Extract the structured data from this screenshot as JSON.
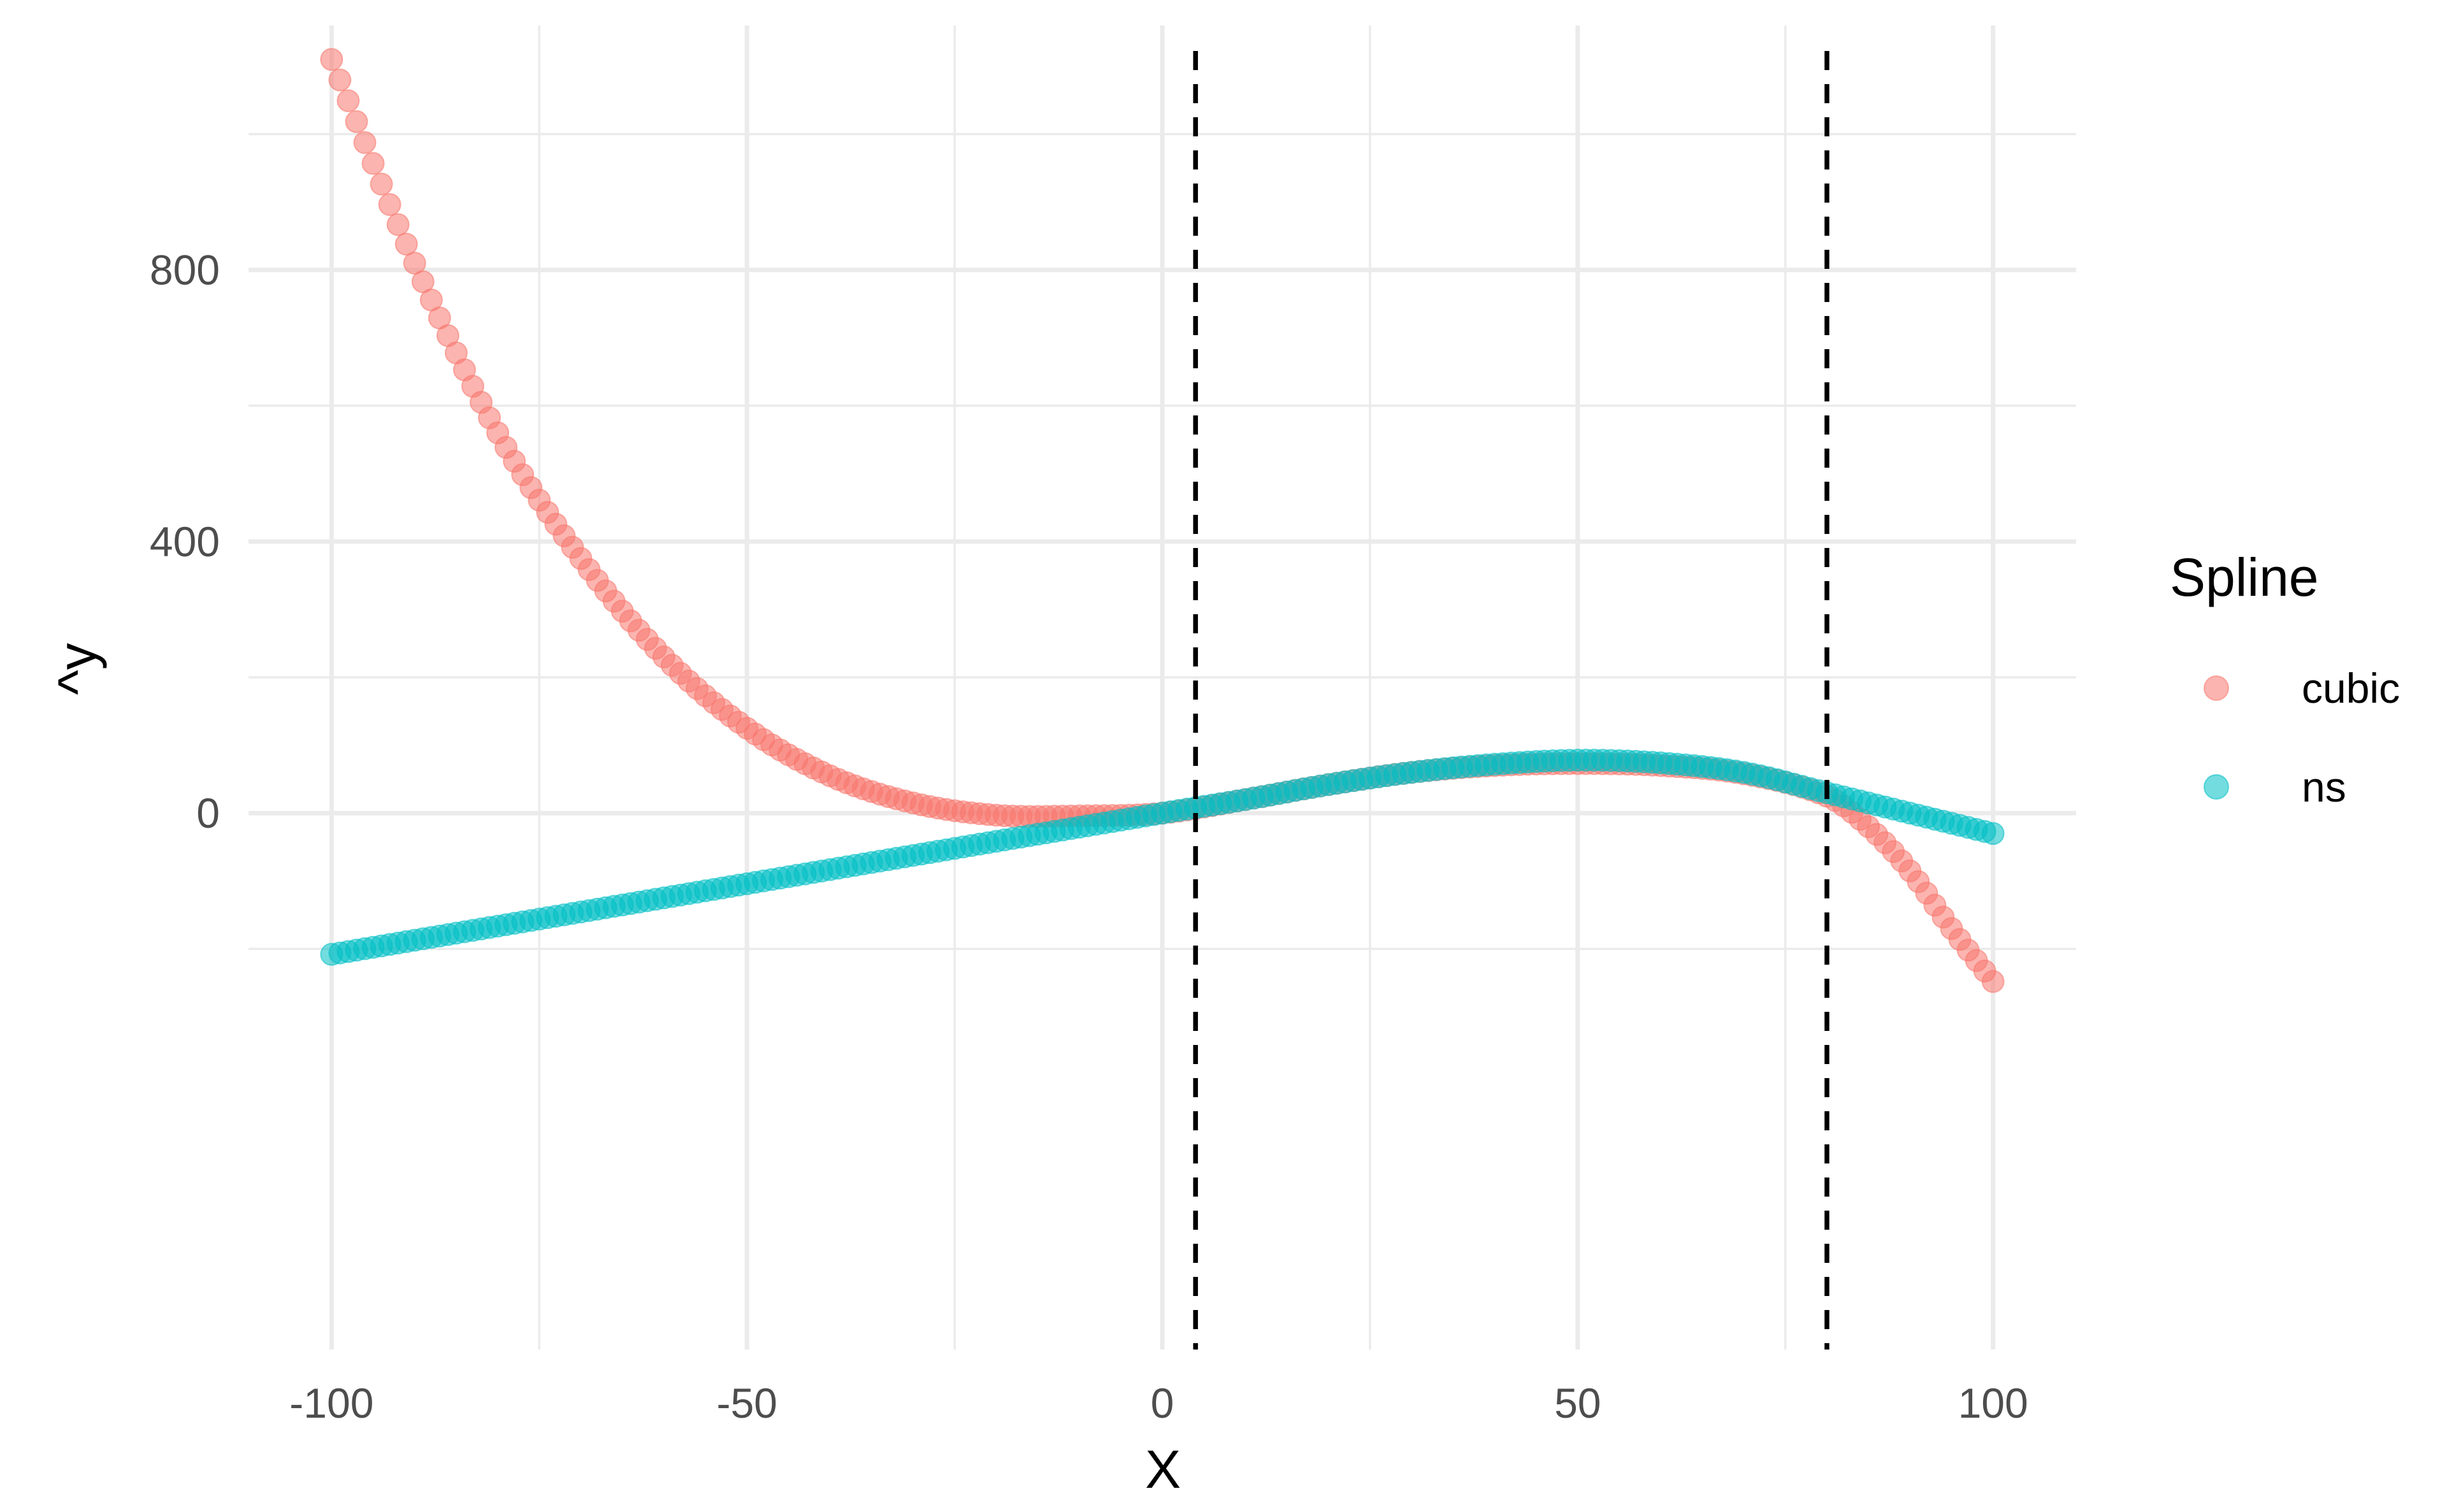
{
  "chart_data": {
    "type": "scatter",
    "xlabel": "X",
    "ylabel": "^y",
    "xlim": [
      -110,
      110
    ],
    "ylim": [
      -790,
      1160
    ],
    "x_ticks": [
      -100,
      -50,
      0,
      50,
      100
    ],
    "x_tick_labels": [
      "-100",
      "-50",
      "0",
      "50",
      "100"
    ],
    "y_ticks": [
      0,
      400,
      800
    ],
    "y_tick_labels": [
      "0",
      "400",
      "800"
    ],
    "x_minor_ticks": [
      -75,
      -25,
      25,
      75
    ],
    "y_minor_ticks": [
      -200,
      200,
      600,
      1000
    ],
    "grid": true,
    "knots": [
      4,
      80
    ],
    "legend": {
      "title": "Spline",
      "position": "right",
      "entries": [
        {
          "label": "cubic",
          "color": "#F8766D"
        },
        {
          "label": "ns",
          "color": "#00BFC4"
        }
      ]
    },
    "series": [
      {
        "name": "cubic",
        "color": "#F8766D",
        "x_range": [
          -100,
          100
        ],
        "x_step": 1,
        "anchor_points": [
          {
            "x": -100,
            "y": 1110
          },
          {
            "x": -90,
            "y": 810
          },
          {
            "x": -80,
            "y": 560
          },
          {
            "x": -70,
            "y": 375
          },
          {
            "x": -60,
            "y": 230
          },
          {
            "x": -50,
            "y": 125
          },
          {
            "x": -40,
            "y": 55
          },
          {
            "x": -30,
            "y": 15
          },
          {
            "x": -20,
            "y": -3
          },
          {
            "x": -10,
            "y": -4
          },
          {
            "x": 0,
            "y": 0
          },
          {
            "x": 10,
            "y": 20
          },
          {
            "x": 20,
            "y": 42
          },
          {
            "x": 30,
            "y": 60
          },
          {
            "x": 40,
            "y": 70
          },
          {
            "x": 50,
            "y": 73
          },
          {
            "x": 60,
            "y": 70
          },
          {
            "x": 70,
            "y": 58
          },
          {
            "x": 80,
            "y": 25
          },
          {
            "x": 85,
            "y": -20
          },
          {
            "x": 90,
            "y": -85
          },
          {
            "x": 95,
            "y": -170
          },
          {
            "x": 100,
            "y": -248
          }
        ]
      },
      {
        "name": "ns",
        "color": "#00BFC4",
        "x_range": [
          -100,
          100
        ],
        "x_step": 1,
        "anchor_points": [
          {
            "x": -100,
            "y": -208
          },
          {
            "x": -50,
            "y": -104
          },
          {
            "x": 0,
            "y": 0
          },
          {
            "x": 10,
            "y": 20
          },
          {
            "x": 20,
            "y": 42
          },
          {
            "x": 30,
            "y": 60
          },
          {
            "x": 40,
            "y": 72
          },
          {
            "x": 50,
            "y": 78
          },
          {
            "x": 60,
            "y": 74
          },
          {
            "x": 70,
            "y": 60
          },
          {
            "x": 80,
            "y": 30
          },
          {
            "x": 90,
            "y": 0
          },
          {
            "x": 100,
            "y": -30
          }
        ]
      }
    ]
  }
}
